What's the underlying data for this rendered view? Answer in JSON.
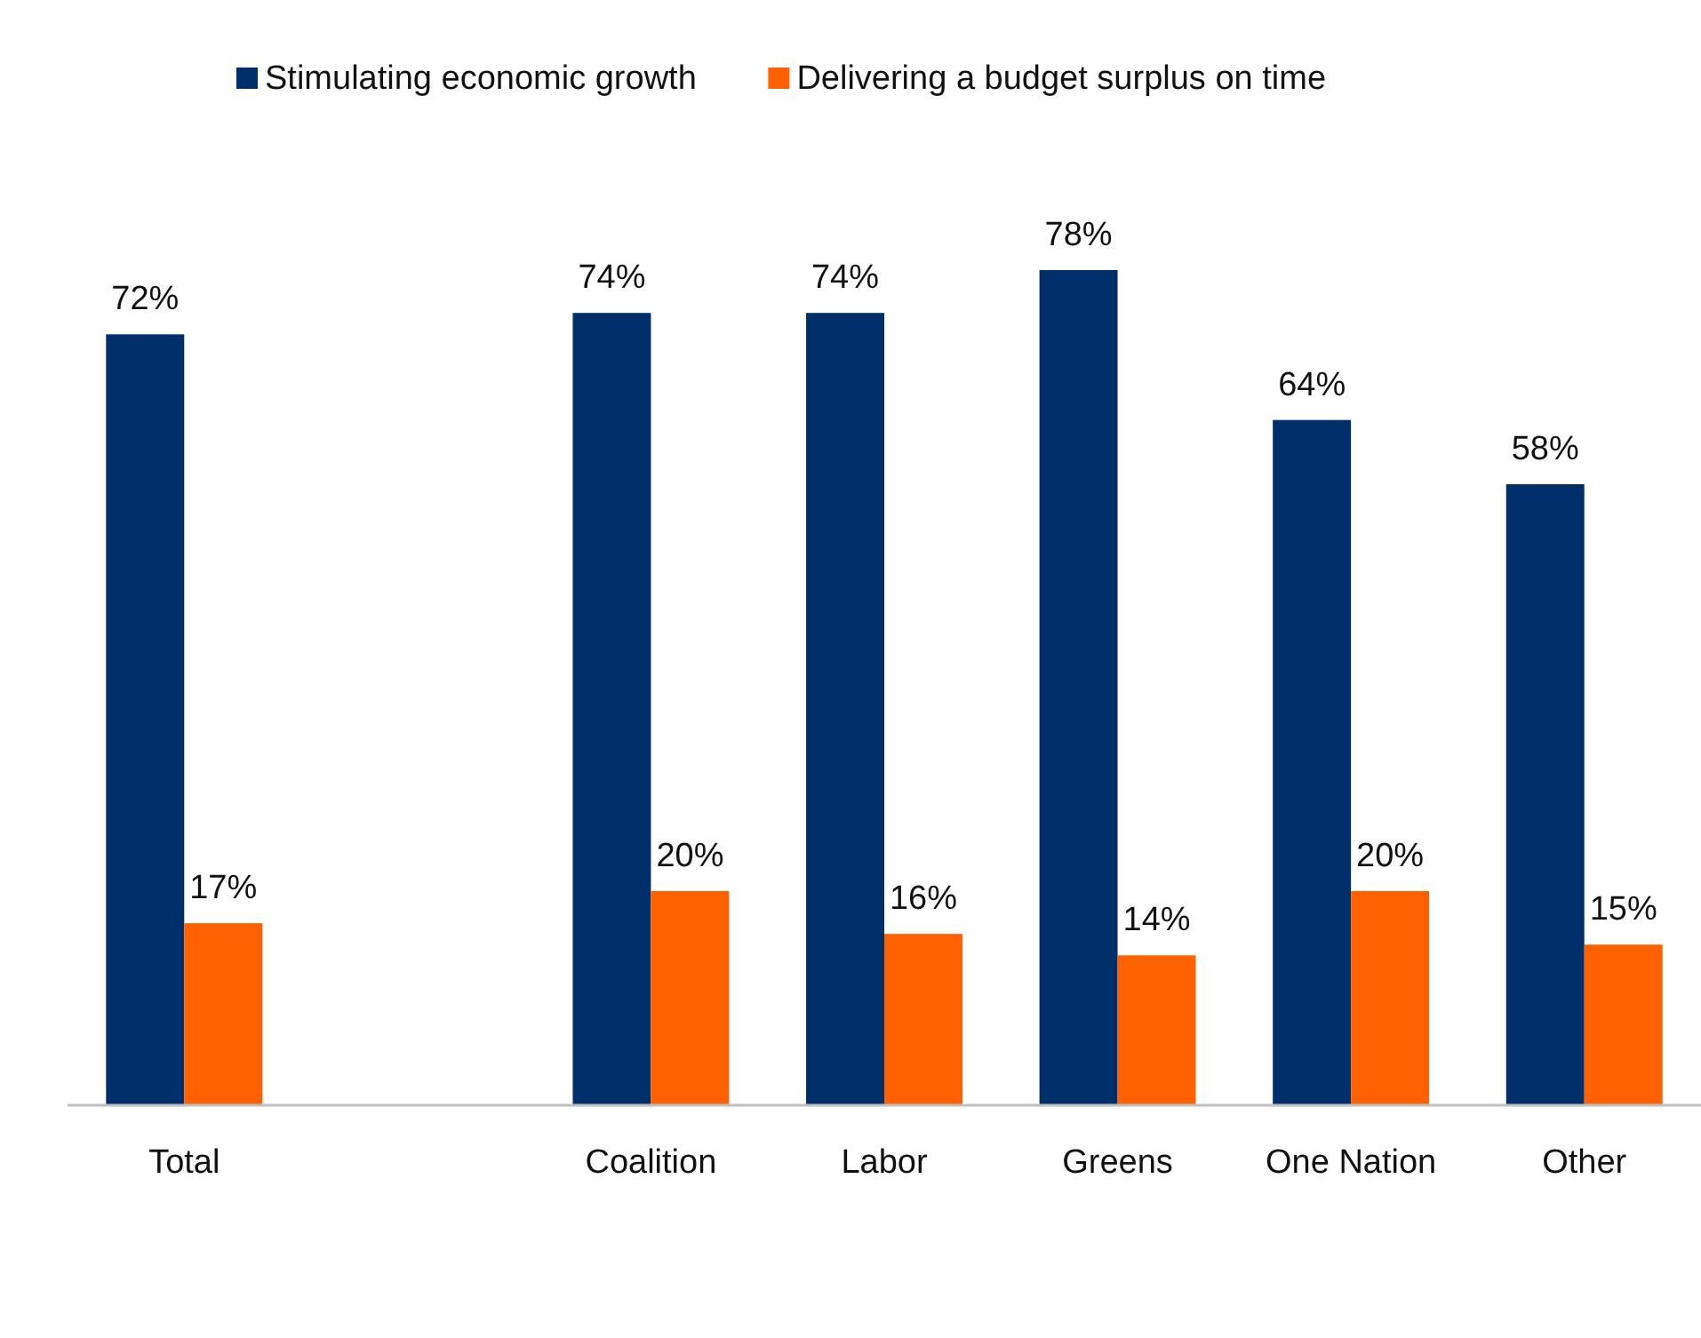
{
  "chart_data": {
    "type": "bar",
    "categories": [
      "Total",
      null,
      "Coalition",
      "Labor",
      "Greens",
      "One Nation",
      "Other"
    ],
    "series": [
      {
        "name": "Stimulating economic growth",
        "color": "#002f6c",
        "values": [
          72,
          null,
          74,
          74,
          78,
          64,
          58
        ],
        "value_labels": [
          "72%",
          null,
          "74%",
          "74%",
          "78%",
          "64%",
          "58%"
        ]
      },
      {
        "name": "Delivering a budget surplus on time",
        "color": "#ff6000",
        "values": [
          17,
          null,
          20,
          16,
          14,
          20,
          15
        ],
        "value_labels": [
          "17%",
          null,
          "20%",
          "16%",
          "14%",
          "20%",
          "15%"
        ]
      }
    ],
    "legend": "top"
  }
}
